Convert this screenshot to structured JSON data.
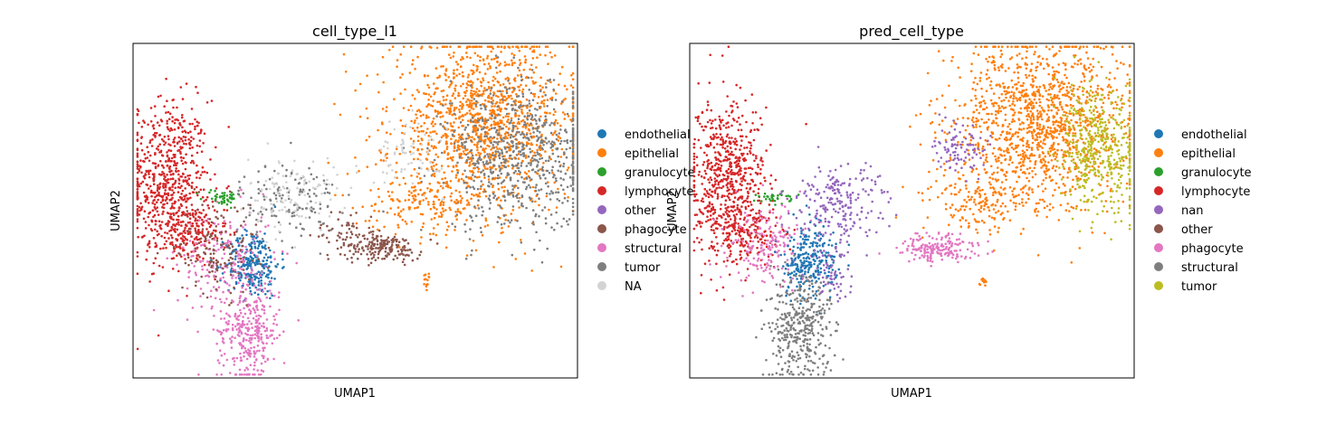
{
  "chart_data": [
    {
      "type": "scatter",
      "title": "cell_type_l1",
      "xlabel": "UMAP1",
      "ylabel": "UMAP2",
      "xlim": [
        0,
        10
      ],
      "ylim": [
        0,
        10
      ],
      "xticks": "none",
      "yticks": "none",
      "grid": false,
      "legend_placement": "right-outside",
      "legend": [
        {
          "label": "endothelial",
          "color": "#1f77b4"
        },
        {
          "label": "epithelial",
          "color": "#ff7f0e"
        },
        {
          "label": "granulocyte",
          "color": "#2ca02c"
        },
        {
          "label": "lymphocyte",
          "color": "#d62728"
        },
        {
          "label": "other",
          "color": "#9467bd"
        },
        {
          "label": "phagocyte",
          "color": "#8c564b"
        },
        {
          "label": "structural",
          "color": "#e377c2"
        },
        {
          "label": "tumor",
          "color": "#7f7f7f"
        },
        {
          "label": "NA",
          "color": "#d3d3d3"
        }
      ],
      "clusters": [
        {
          "category": "lymphocyte",
          "center": [
            0.8,
            5.9
          ],
          "spread": [
            0.45,
            1.2
          ],
          "n": 650
        },
        {
          "category": "lymphocyte",
          "center": [
            1.3,
            4.3
          ],
          "spread": [
            0.4,
            0.45
          ],
          "n": 160
        },
        {
          "category": "granulocyte",
          "center": [
            2.0,
            5.4
          ],
          "spread": [
            0.22,
            0.12
          ],
          "n": 45
        },
        {
          "category": "endothelial",
          "center": [
            2.7,
            3.4
          ],
          "spread": [
            0.3,
            0.5
          ],
          "n": 260
        },
        {
          "category": "structural",
          "center": [
            2.6,
            1.4
          ],
          "spread": [
            0.35,
            0.75
          ],
          "n": 320
        },
        {
          "category": "structural",
          "center": [
            2.1,
            3.5
          ],
          "spread": [
            0.55,
            0.8
          ],
          "n": 180
        },
        {
          "category": "phagocyte",
          "center": [
            1.9,
            3.9
          ],
          "spread": [
            0.45,
            0.7
          ],
          "n": 140
        },
        {
          "category": "tumor",
          "center": [
            3.5,
            5.3
          ],
          "spread": [
            0.55,
            0.6
          ],
          "n": 140
        },
        {
          "category": "NA",
          "center": [
            3.6,
            5.5
          ],
          "spread": [
            0.5,
            0.55
          ],
          "n": 110
        },
        {
          "category": "phagocyte",
          "center": [
            5.6,
            3.9
          ],
          "spread": [
            0.45,
            0.2
          ],
          "n": 180
        },
        {
          "category": "phagocyte",
          "center": [
            4.8,
            4.4
          ],
          "spread": [
            0.35,
            0.35
          ],
          "n": 50
        },
        {
          "category": "epithelial",
          "center": [
            7.9,
            7.6
          ],
          "spread": [
            1.05,
            1.25
          ],
          "n": 1300
        },
        {
          "category": "tumor",
          "center": [
            8.7,
            6.6
          ],
          "spread": [
            0.85,
            1.1
          ],
          "n": 700
        },
        {
          "category": "epithelial",
          "center": [
            6.6,
            5.3
          ],
          "spread": [
            0.7,
            0.5
          ],
          "n": 170
        },
        {
          "category": "NA",
          "center": [
            6.2,
            6.7
          ],
          "spread": [
            0.4,
            0.5
          ],
          "n": 70
        },
        {
          "category": "epithelial",
          "center": [
            6.6,
            2.9
          ],
          "spread": [
            0.05,
            0.1
          ],
          "n": 14
        }
      ]
    },
    {
      "type": "scatter",
      "title": "pred_cell_type",
      "xlabel": "UMAP1",
      "ylabel": "UMAP2",
      "xlim": [
        0,
        10
      ],
      "ylim": [
        0,
        10
      ],
      "xticks": "none",
      "yticks": "none",
      "grid": false,
      "legend_placement": "right-outside",
      "legend": [
        {
          "label": "endothelial",
          "color": "#1f77b4"
        },
        {
          "label": "epithelial",
          "color": "#ff7f0e"
        },
        {
          "label": "granulocyte",
          "color": "#2ca02c"
        },
        {
          "label": "lymphocyte",
          "color": "#d62728"
        },
        {
          "label": "nan",
          "color": "#9467bd"
        },
        {
          "label": "other",
          "color": "#8c564b"
        },
        {
          "label": "phagocyte",
          "color": "#e377c2"
        },
        {
          "label": "structural",
          "color": "#7f7f7f"
        },
        {
          "label": "tumor",
          "color": "#bcbd22"
        }
      ],
      "clusters": [
        {
          "category": "lymphocyte",
          "center": [
            0.8,
            5.9
          ],
          "spread": [
            0.45,
            1.2
          ],
          "n": 650
        },
        {
          "category": "lymphocyte",
          "center": [
            1.3,
            4.3
          ],
          "spread": [
            0.4,
            0.45
          ],
          "n": 140
        },
        {
          "category": "granulocyte",
          "center": [
            1.9,
            5.4
          ],
          "spread": [
            0.2,
            0.12
          ],
          "n": 35
        },
        {
          "category": "phagocyte",
          "center": [
            1.8,
            3.9
          ],
          "spread": [
            0.45,
            0.6
          ],
          "n": 180
        },
        {
          "category": "endothelial",
          "center": [
            2.7,
            3.5
          ],
          "spread": [
            0.3,
            0.5
          ],
          "n": 260
        },
        {
          "category": "structural",
          "center": [
            2.5,
            1.5
          ],
          "spread": [
            0.4,
            0.8
          ],
          "n": 380
        },
        {
          "category": "nan",
          "center": [
            3.4,
            5.2
          ],
          "spread": [
            0.5,
            0.55
          ],
          "n": 220
        },
        {
          "category": "nan",
          "center": [
            3.2,
            3.2
          ],
          "spread": [
            0.25,
            0.5
          ],
          "n": 60
        },
        {
          "category": "phagocyte",
          "center": [
            5.6,
            3.9
          ],
          "spread": [
            0.45,
            0.2
          ],
          "n": 180
        },
        {
          "category": "epithelial",
          "center": [
            7.9,
            7.6
          ],
          "spread": [
            1.0,
            1.25
          ],
          "n": 1300
        },
        {
          "category": "tumor",
          "center": [
            9.2,
            6.8
          ],
          "spread": [
            0.45,
            1.0
          ],
          "n": 450
        },
        {
          "category": "epithelial",
          "center": [
            6.6,
            5.3
          ],
          "spread": [
            0.7,
            0.5
          ],
          "n": 170
        },
        {
          "category": "nan",
          "center": [
            6.1,
            6.9
          ],
          "spread": [
            0.3,
            0.4
          ],
          "n": 90
        },
        {
          "category": "epithelial",
          "center": [
            6.6,
            2.9
          ],
          "spread": [
            0.05,
            0.1
          ],
          "n": 14
        }
      ]
    }
  ]
}
